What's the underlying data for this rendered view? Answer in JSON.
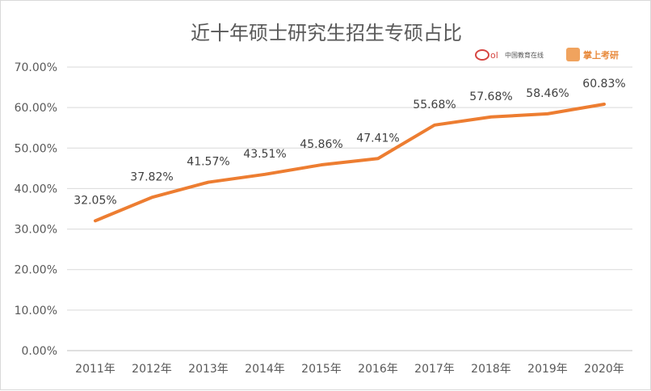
{
  "chart_data": {
    "type": "line",
    "title": "近十年硕士研究生招生专硕占比",
    "categories": [
      "2011年",
      "2012年",
      "2013年",
      "2014年",
      "2015年",
      "2016年",
      "2017年",
      "2018年",
      "2019年",
      "2020年"
    ],
    "series": [
      {
        "values": [
          32.05,
          37.82,
          41.57,
          43.51,
          45.86,
          47.41,
          55.68,
          57.68,
          58.46,
          60.83
        ]
      }
    ],
    "data_labels": [
      "32.05%",
      "37.82%",
      "41.57%",
      "43.51%",
      "45.86%",
      "47.41%",
      "55.68%",
      "57.68%",
      "58.46%",
      "60.83%"
    ],
    "y_ticks": [
      "0.00%",
      "10.00%",
      "20.00%",
      "30.00%",
      "40.00%",
      "50.00%",
      "60.00%",
      "70.00%"
    ],
    "ylim": [
      0,
      70
    ],
    "grid": true,
    "line_color": "#ed7d31"
  },
  "logos": {
    "left": {
      "text": "中国教育在线"
    },
    "right": {
      "text": "掌上考研"
    }
  }
}
